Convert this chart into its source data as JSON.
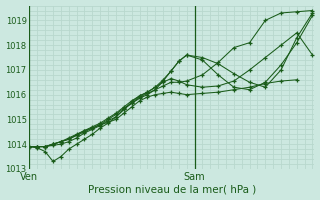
{
  "xlabel": "Pression niveau de la mer( hPa )",
  "bg_color": "#cce8e0",
  "grid_color": "#b8d8ce",
  "line_color": "#1a5c1a",
  "tick_label_color": "#1a5c1a",
  "ylim": [
    1013.0,
    1019.6
  ],
  "yticks": [
    1013,
    1014,
    1015,
    1016,
    1017,
    1018,
    1019
  ],
  "xlim": [
    0.0,
    1.45
  ],
  "ven_line_x": 0.0,
  "sam_line_x": 0.84,
  "lines": [
    {
      "x": [
        0.0,
        0.04,
        0.08,
        0.12,
        0.16,
        0.2,
        0.24,
        0.28,
        0.32,
        0.36,
        0.4,
        0.44,
        0.48,
        0.52,
        0.56,
        0.6,
        0.64,
        0.68,
        0.72,
        0.76,
        0.8,
        0.88,
        0.96,
        1.04,
        1.12,
        1.2,
        1.28,
        1.36,
        1.44
      ],
      "y": [
        1013.9,
        1013.9,
        1013.9,
        1013.95,
        1014.0,
        1014.1,
        1014.25,
        1014.45,
        1014.6,
        1014.75,
        1014.95,
        1015.1,
        1015.4,
        1015.65,
        1015.9,
        1016.05,
        1016.2,
        1016.35,
        1016.5,
        1016.5,
        1016.55,
        1016.8,
        1017.3,
        1017.9,
        1018.1,
        1019.0,
        1019.3,
        1019.35,
        1019.4
      ]
    },
    {
      "x": [
        0.0,
        0.04,
        0.08,
        0.12,
        0.16,
        0.2,
        0.24,
        0.28,
        0.32,
        0.36,
        0.4,
        0.44,
        0.48,
        0.52,
        0.56,
        0.6,
        0.64,
        0.68,
        0.72,
        0.76,
        0.8,
        0.88,
        0.96,
        1.04,
        1.12,
        1.2,
        1.28,
        1.36,
        1.44
      ],
      "y": [
        1013.9,
        1013.85,
        1013.7,
        1013.3,
        1013.5,
        1013.8,
        1014.0,
        1014.2,
        1014.4,
        1014.65,
        1014.85,
        1015.1,
        1015.4,
        1015.7,
        1015.95,
        1016.1,
        1016.3,
        1016.5,
        1016.65,
        1016.55,
        1016.4,
        1016.3,
        1016.35,
        1016.55,
        1017.0,
        1017.5,
        1018.0,
        1018.5,
        1017.6
      ]
    },
    {
      "x": [
        0.0,
        0.04,
        0.08,
        0.12,
        0.16,
        0.2,
        0.24,
        0.28,
        0.32,
        0.36,
        0.4,
        0.44,
        0.48,
        0.52,
        0.56,
        0.6,
        0.64,
        0.68,
        0.72,
        0.76,
        0.8,
        0.88,
        0.96,
        1.04,
        1.12,
        1.2,
        1.28,
        1.36
      ],
      "y": [
        1013.9,
        1013.9,
        1013.9,
        1014.0,
        1014.1,
        1014.25,
        1014.4,
        1014.55,
        1014.65,
        1014.78,
        1014.88,
        1015.0,
        1015.25,
        1015.5,
        1015.75,
        1015.9,
        1016.0,
        1016.05,
        1016.1,
        1016.05,
        1016.0,
        1016.05,
        1016.1,
        1016.2,
        1016.3,
        1016.45,
        1016.55,
        1016.6
      ]
    },
    {
      "x": [
        0.0,
        0.04,
        0.08,
        0.12,
        0.16,
        0.2,
        0.24,
        0.28,
        0.32,
        0.36,
        0.4,
        0.44,
        0.48,
        0.52,
        0.56,
        0.6,
        0.64,
        0.68,
        0.72,
        0.76,
        0.8,
        0.88,
        0.96,
        1.04,
        1.12,
        1.2,
        1.28,
        1.36,
        1.44
      ],
      "y": [
        1013.9,
        1013.9,
        1013.9,
        1014.0,
        1014.1,
        1014.2,
        1014.35,
        1014.5,
        1014.65,
        1014.8,
        1015.0,
        1015.2,
        1015.45,
        1015.65,
        1015.85,
        1016.0,
        1016.2,
        1016.55,
        1016.95,
        1017.35,
        1017.6,
        1017.5,
        1017.25,
        1016.85,
        1016.5,
        1016.3,
        1017.0,
        1018.3,
        1019.3
      ]
    },
    {
      "x": [
        0.0,
        0.04,
        0.08,
        0.12,
        0.16,
        0.2,
        0.24,
        0.28,
        0.32,
        0.36,
        0.4,
        0.44,
        0.48,
        0.52,
        0.56,
        0.6,
        0.64,
        0.68,
        0.72,
        0.76,
        0.8,
        0.88,
        0.96,
        1.04,
        1.12,
        1.2,
        1.28,
        1.36,
        1.44
      ],
      "y": [
        1013.9,
        1013.9,
        1013.9,
        1014.0,
        1014.1,
        1014.2,
        1014.38,
        1014.55,
        1014.7,
        1014.85,
        1015.05,
        1015.25,
        1015.5,
        1015.75,
        1015.95,
        1016.1,
        1016.3,
        1016.6,
        1016.95,
        1017.35,
        1017.6,
        1017.4,
        1016.8,
        1016.3,
        1016.2,
        1016.5,
        1017.2,
        1018.1,
        1019.2
      ]
    }
  ]
}
